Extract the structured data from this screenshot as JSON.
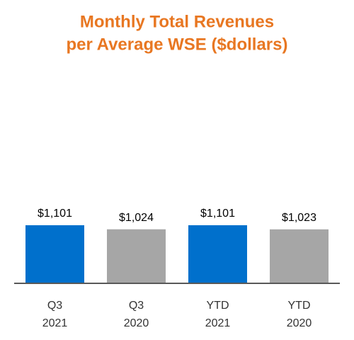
{
  "chart_data": {
    "type": "bar",
    "title": [
      "Monthly Total Revenues",
      "per Average WSE ($dollars)"
    ],
    "categories": [
      [
        "Q3",
        "2021"
      ],
      [
        "Q3",
        "2020"
      ],
      [
        "YTD",
        "2021"
      ],
      [
        "YTD",
        "2020"
      ]
    ],
    "values": [
      1101,
      1024,
      1101,
      1023
    ],
    "value_labels": [
      "$1,101",
      "$1,024",
      "$1,101",
      "$1,023"
    ],
    "colors": [
      "#0070cc",
      "#a6a6a6",
      "#0070cc",
      "#a6a6a6"
    ]
  }
}
